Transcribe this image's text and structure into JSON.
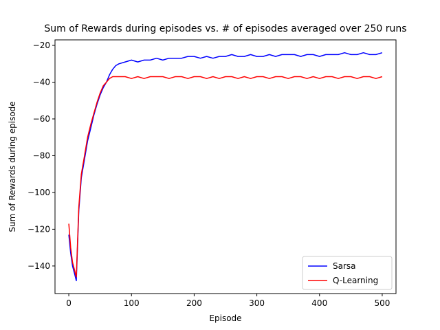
{
  "chart_data": {
    "type": "line",
    "title": "Sum of Rewards during episodes vs. # of episodes averaged over 250 runs",
    "xlabel": "Episode",
    "ylabel": "Sum of Rewards during episode",
    "xlim": [
      -22,
      522
    ],
    "ylim": [
      -155,
      -17
    ],
    "xticks": [
      0,
      100,
      200,
      300,
      400,
      500
    ],
    "yticks": [
      -140,
      -120,
      -100,
      -80,
      -60,
      -40,
      -20
    ],
    "legend_position": "lower-right",
    "grid": false,
    "series": [
      {
        "name": "Sarsa",
        "color": "#0000ff",
        "x": [
          0,
          3,
          6,
          9,
          12,
          16,
          20,
          25,
          30,
          35,
          40,
          45,
          50,
          55,
          60,
          65,
          70,
          75,
          80,
          90,
          100,
          110,
          120,
          130,
          140,
          150,
          160,
          170,
          180,
          190,
          200,
          210,
          220,
          230,
          240,
          250,
          260,
          270,
          280,
          290,
          300,
          310,
          320,
          330,
          340,
          350,
          360,
          370,
          380,
          390,
          400,
          410,
          420,
          430,
          440,
          450,
          460,
          470,
          480,
          490,
          500
        ],
        "values": [
          -123,
          -133,
          -140,
          -144,
          -148,
          -110,
          -92,
          -82,
          -72,
          -65,
          -58,
          -52,
          -47,
          -43,
          -40,
          -36,
          -33,
          -31,
          -30,
          -29,
          -28,
          -29,
          -28,
          -28,
          -27,
          -28,
          -27,
          -27,
          -27,
          -26,
          -26,
          -27,
          -26,
          -27,
          -26,
          -26,
          -25,
          -26,
          -26,
          -25,
          -26,
          -26,
          -25,
          -26,
          -25,
          -25,
          -25,
          -26,
          -25,
          -25,
          -26,
          -25,
          -25,
          -25,
          -24,
          -25,
          -25,
          -24,
          -25,
          -25,
          -24
        ]
      },
      {
        "name": "Q-Learning",
        "color": "#ff0000",
        "x": [
          0,
          3,
          6,
          9,
          12,
          16,
          20,
          25,
          30,
          35,
          40,
          45,
          50,
          55,
          60,
          65,
          70,
          75,
          80,
          90,
          100,
          110,
          120,
          130,
          140,
          150,
          160,
          170,
          180,
          190,
          200,
          210,
          220,
          230,
          240,
          250,
          260,
          270,
          280,
          290,
          300,
          310,
          320,
          330,
          340,
          350,
          360,
          370,
          380,
          390,
          400,
          410,
          420,
          430,
          440,
          450,
          460,
          470,
          480,
          490,
          500
        ],
        "values": [
          -117,
          -130,
          -138,
          -142,
          -146,
          -108,
          -90,
          -80,
          -70,
          -63,
          -57,
          -51,
          -46,
          -42,
          -40,
          -38,
          -37,
          -37,
          -37,
          -37,
          -38,
          -37,
          -38,
          -37,
          -37,
          -37,
          -38,
          -37,
          -37,
          -38,
          -37,
          -37,
          -38,
          -37,
          -38,
          -37,
          -37,
          -38,
          -37,
          -38,
          -37,
          -37,
          -38,
          -37,
          -37,
          -38,
          -37,
          -37,
          -38,
          -37,
          -38,
          -37,
          -37,
          -38,
          -37,
          -37,
          -38,
          -37,
          -37,
          -38,
          -37
        ]
      }
    ]
  }
}
